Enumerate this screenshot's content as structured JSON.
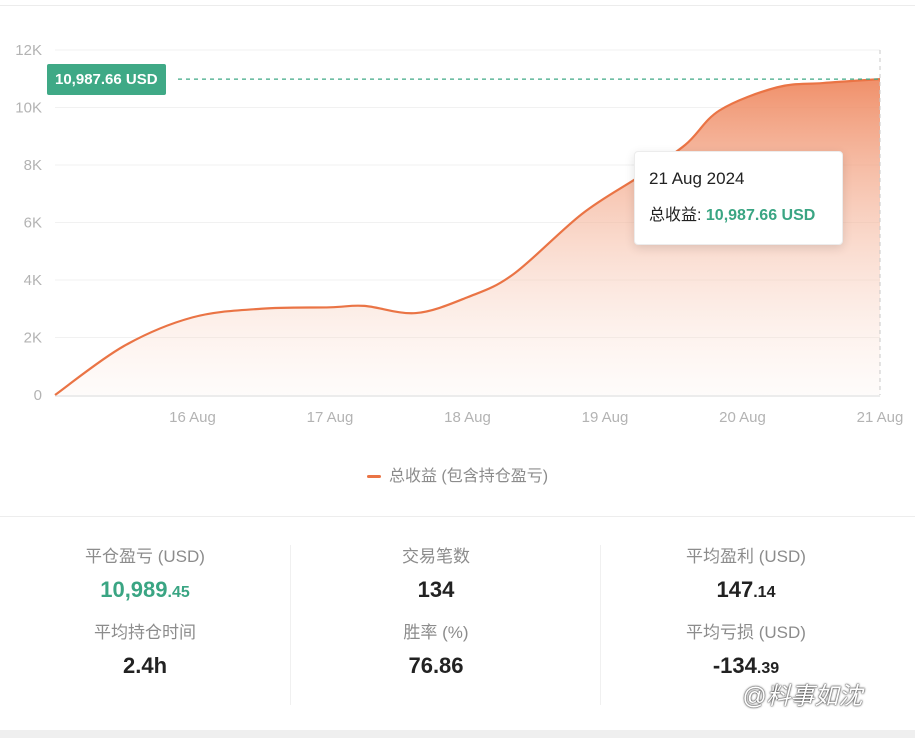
{
  "chart_data": {
    "type": "area",
    "series": [
      {
        "name": "总收益 (包含持仓盈亏)",
        "color": "#ea7445",
        "points": [
          [
            "2024-08-15T00:00",
            0
          ],
          [
            "2024-08-15T12:00",
            1700
          ],
          [
            "2024-08-16T00:00",
            2700
          ],
          [
            "2024-08-16T12:00",
            3000
          ],
          [
            "2024-08-17T00:00",
            3050
          ],
          [
            "2024-08-17T06:00",
            3100
          ],
          [
            "2024-08-17T15:00",
            2850
          ],
          [
            "2024-08-18T00:00",
            3400
          ],
          [
            "2024-08-18T08:00",
            4200
          ],
          [
            "2024-08-18T20:00",
            6300
          ],
          [
            "2024-08-19T06:00",
            7600
          ],
          [
            "2024-08-19T14:00",
            8700
          ],
          [
            "2024-08-19T20:00",
            9900
          ],
          [
            "2024-08-20T06:00",
            10700
          ],
          [
            "2024-08-20T14:00",
            10850
          ],
          [
            "2024-08-21T00:00",
            10987.66
          ]
        ]
      }
    ],
    "x_ticks": [
      "16 Aug",
      "17 Aug",
      "18 Aug",
      "19 Aug",
      "20 Aug",
      "21 Aug"
    ],
    "y_ticks": [
      "0",
      "2K",
      "4K",
      "6K",
      "8K",
      "10K",
      "12K"
    ],
    "ylim": [
      0,
      12000
    ],
    "xlim": [
      "2024-08-15T00:00",
      "2024-08-21T00:00"
    ],
    "grid": true,
    "legend_position": "bottom",
    "reference_line": 10987.66,
    "reference_label": "10,987.66 USD",
    "tooltip": {
      "date": "21 Aug 2024",
      "label": "总收益:",
      "value": "10,987.66 USD"
    }
  },
  "legend": {
    "label": "总收益 (包含持仓盈亏)"
  },
  "stats": {
    "close_pnl": {
      "label": "平仓盈亏 (USD)",
      "int": "10,989",
      "dec": ".45"
    },
    "avg_hold": {
      "label": "平均持仓时间",
      "value": "2.4h"
    },
    "trades": {
      "label": "交易笔数",
      "value": "134"
    },
    "win_rate": {
      "label": "胜率 (%)",
      "value": "76.86"
    },
    "avg_profit": {
      "label": "平均盈利 (USD)",
      "int": "147",
      "dec": ".14"
    },
    "avg_loss": {
      "label": "平均亏损 (USD)",
      "int": "-134",
      "dec": ".39"
    }
  },
  "colors": {
    "line": "#ea7445",
    "accent_green": "#3aa583",
    "badge": "#3fa986"
  },
  "watermark": "@料事如沈"
}
